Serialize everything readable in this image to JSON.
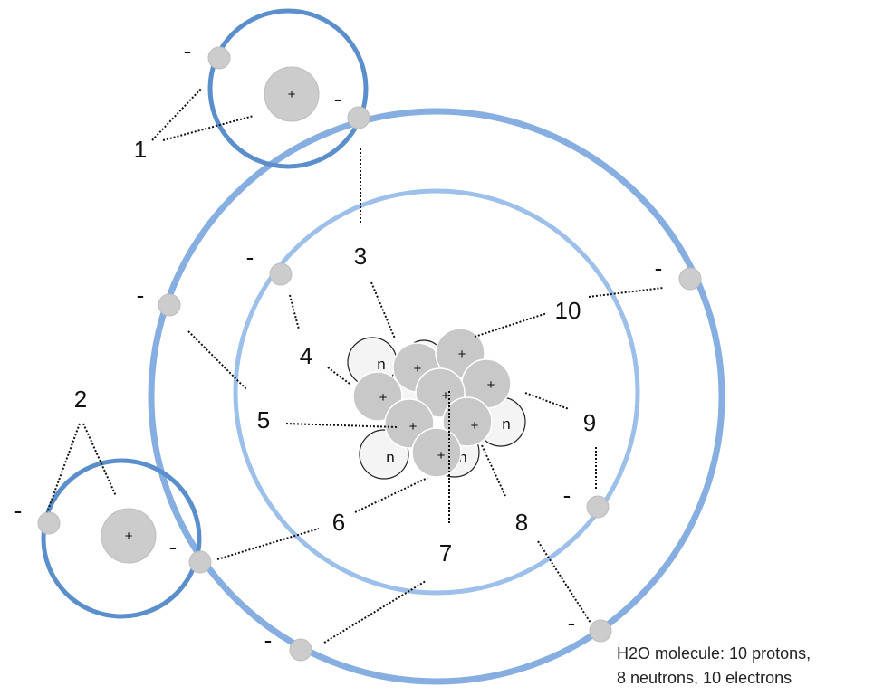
{
  "caption": {
    "line1": "H2O molecule: 10 protons,",
    "line2": "8 neutrons, 10 electrons"
  },
  "labels": {
    "l1": "1",
    "l2": "2",
    "l3": "3",
    "l4": "4",
    "l5": "5",
    "l6": "6",
    "l7": "7",
    "l8": "8",
    "l9": "9",
    "l10": "10"
  },
  "symbols": {
    "electron_sign": "-",
    "proton_sign": "+",
    "neutron_sign": "n"
  }
}
